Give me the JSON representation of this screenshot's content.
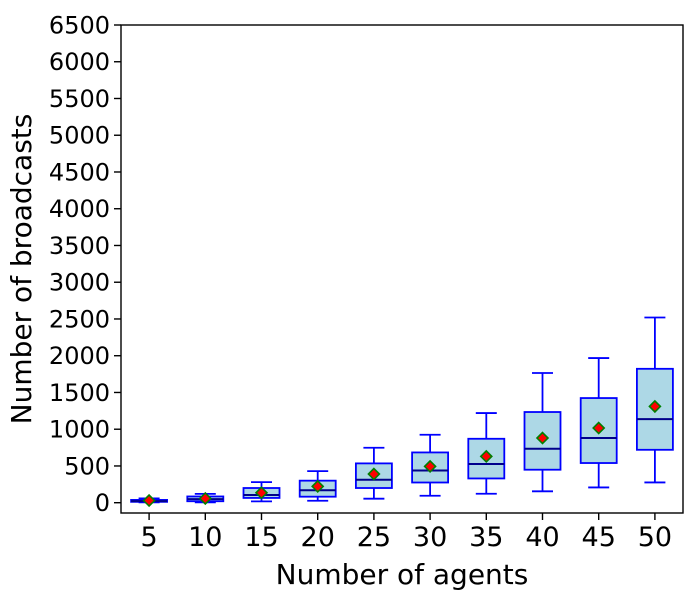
{
  "chart_data": {
    "type": "boxplot",
    "title": "",
    "xlabel": "Number of agents",
    "ylabel": "Number of broadcasts",
    "categories": [
      "5",
      "10",
      "15",
      "20",
      "25",
      "30",
      "35",
      "40",
      "45",
      "50"
    ],
    "yticks": [
      0,
      500,
      1000,
      1500,
      2000,
      2500,
      3000,
      3500,
      4000,
      4500,
      5000,
      5500,
      6000,
      6500
    ],
    "ylim": [
      -140,
      6500
    ],
    "grid": false,
    "legend": "none",
    "boxes": [
      {
        "category": "5",
        "whisker_low": 5,
        "q1": 12,
        "median": 22,
        "q3": 38,
        "whisker_high": 58,
        "mean": 30
      },
      {
        "category": "10",
        "whisker_low": 5,
        "q1": 20,
        "median": 48,
        "q3": 85,
        "whisker_high": 120,
        "mean": 58
      },
      {
        "category": "15",
        "whisker_low": 18,
        "q1": 65,
        "median": 105,
        "q3": 200,
        "whisker_high": 280,
        "mean": 135
      },
      {
        "category": "20",
        "whisker_low": 27,
        "q1": 82,
        "median": 170,
        "q3": 300,
        "whisker_high": 430,
        "mean": 222
      },
      {
        "category": "25",
        "whisker_low": 55,
        "q1": 200,
        "median": 312,
        "q3": 535,
        "whisker_high": 748,
        "mean": 390
      },
      {
        "category": "30",
        "whisker_low": 95,
        "q1": 275,
        "median": 438,
        "q3": 684,
        "whisker_high": 925,
        "mean": 494
      },
      {
        "category": "35",
        "whisker_low": 122,
        "q1": 330,
        "median": 526,
        "q3": 870,
        "whisker_high": 1220,
        "mean": 630
      },
      {
        "category": "40",
        "whisker_low": 155,
        "q1": 449,
        "median": 735,
        "q3": 1234,
        "whisker_high": 1765,
        "mean": 880
      },
      {
        "category": "45",
        "whisker_low": 208,
        "q1": 540,
        "median": 880,
        "q3": 1424,
        "whisker_high": 1968,
        "mean": 1016
      },
      {
        "category": "50",
        "whisker_low": 276,
        "q1": 720,
        "median": 1138,
        "q3": 1822,
        "whisker_high": 2520,
        "mean": 1310
      }
    ],
    "style": {
      "box_fill": "#ADD8E6",
      "box_edge": "#0000FF",
      "median_color": "#00008B",
      "whisker_color": "#0000FF",
      "cap_color": "#0000FF",
      "mean_marker": "diamond",
      "mean_fill": "#FF0000",
      "mean_edge": "#008000",
      "spine_color": "#000000",
      "background": "#FFFFFF"
    }
  }
}
